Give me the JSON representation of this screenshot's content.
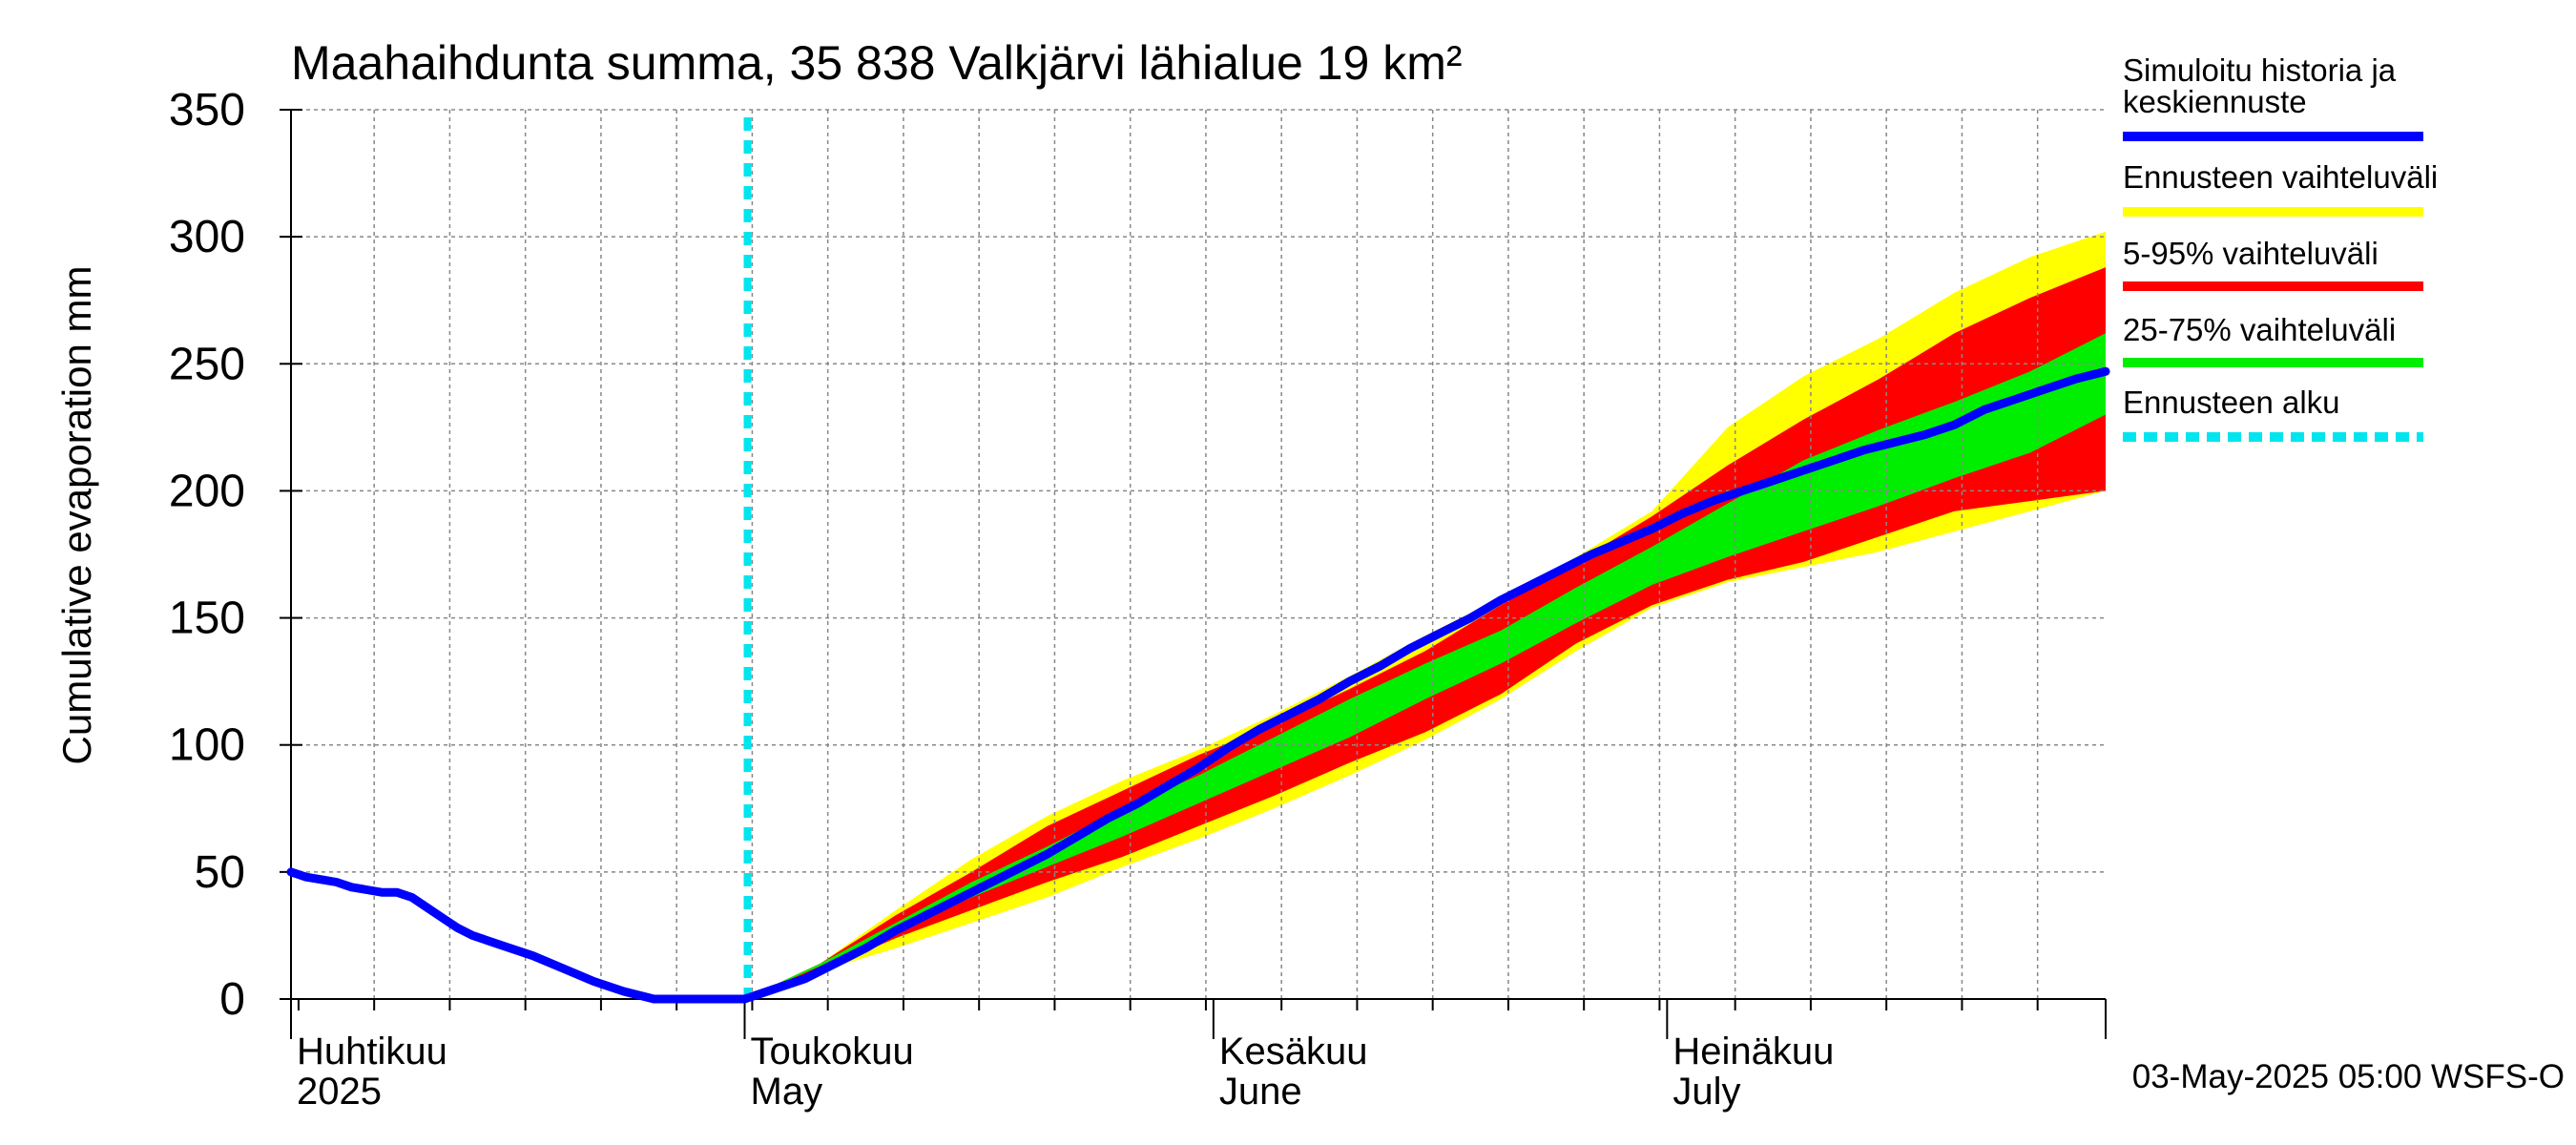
{
  "chart_data": {
    "type": "area",
    "title": "Maahaihdunta summa, 35 838 Valkjärvi lähialue 19 km²",
    "ylabel": "Cumulative evaporation   mm",
    "xlabel": "",
    "ylim": [
      0,
      350
    ],
    "y_ticks": [
      0,
      50,
      100,
      150,
      200,
      250,
      300,
      350
    ],
    "x_range_days": [
      0,
      120
    ],
    "grid": true,
    "legend_position": "right",
    "month_labels": [
      {
        "fi": "Huhtikuu",
        "en": "2025",
        "day": 0
      },
      {
        "fi": "Toukokuu",
        "en": "May",
        "day": 30
      },
      {
        "fi": "Kesäkuu",
        "en": "June",
        "day": 61
      },
      {
        "fi": "Heinäkuu",
        "en": "July",
        "day": 91
      }
    ],
    "forecast_start_day": 30,
    "history": {
      "x": [
        0,
        1,
        2,
        3,
        4,
        5,
        6,
        7,
        8,
        9,
        10,
        11,
        12,
        14,
        16,
        18,
        20,
        22,
        24,
        26,
        28,
        29,
        30
      ],
      "y": [
        50,
        48,
        47,
        46,
        44,
        43,
        42,
        42,
        40,
        36,
        32,
        28,
        25,
        21,
        17,
        12,
        7,
        3,
        0,
        0,
        0,
        0,
        0
      ]
    },
    "median": {
      "x": [
        30,
        32,
        34,
        36,
        38,
        40,
        42,
        44,
        46,
        48,
        50,
        52,
        54,
        56,
        58,
        60,
        62,
        64,
        66,
        68,
        70,
        72,
        74,
        76,
        78,
        80,
        82,
        84,
        86,
        88,
        90,
        92,
        94,
        96,
        98,
        100,
        102,
        104,
        106,
        108,
        110,
        112,
        114,
        116,
        118,
        120
      ],
      "y": [
        0,
        4,
        8,
        14,
        20,
        27,
        33,
        39,
        45,
        51,
        57,
        64,
        71,
        77,
        84,
        91,
        99,
        106,
        112,
        118,
        125,
        131,
        138,
        144,
        150,
        157,
        163,
        169,
        175,
        180,
        185,
        191,
        196,
        200,
        204,
        208,
        212,
        216,
        219,
        222,
        226,
        232,
        236,
        240,
        244,
        247
      ]
    },
    "series": [
      {
        "name": "Ennusteen vaihteluväli",
        "x": [
          30,
          35,
          40,
          45,
          50,
          55,
          60,
          65,
          70,
          75,
          80,
          85,
          90,
          95,
          100,
          105,
          110,
          115,
          120
        ],
        "lower": [
          0,
          11,
          20,
          30,
          40,
          52,
          63,
          75,
          88,
          102,
          118,
          137,
          154,
          164,
          170,
          176,
          184,
          192,
          200
        ],
        "upper": [
          0,
          14,
          35,
          55,
          72,
          86,
          98,
          112,
          127,
          143,
          158,
          174,
          192,
          225,
          245,
          260,
          278,
          292,
          302
        ]
      },
      {
        "name": "5-95% vaihteluväli",
        "x": [
          30,
          35,
          40,
          45,
          50,
          55,
          60,
          65,
          70,
          75,
          80,
          85,
          90,
          95,
          100,
          105,
          110,
          115,
          120
        ],
        "lower": [
          0,
          11,
          24,
          35,
          46,
          56,
          68,
          80,
          93,
          105,
          120,
          140,
          155,
          165,
          172,
          182,
          192,
          196,
          200
        ],
        "upper": [
          0,
          14,
          33,
          50,
          68,
          82,
          96,
          108,
          122,
          137,
          155,
          172,
          190,
          210,
          228,
          244,
          262,
          276,
          288
        ]
      },
      {
        "name": "25-75% vaihteluväli",
        "x": [
          30,
          35,
          40,
          45,
          50,
          55,
          60,
          65,
          70,
          75,
          80,
          85,
          90,
          95,
          100,
          105,
          110,
          115,
          120
        ],
        "lower": [
          0,
          13,
          27,
          40,
          52,
          64,
          77,
          90,
          103,
          118,
          132,
          148,
          163,
          174,
          184,
          194,
          205,
          215,
          230
        ],
        "upper": [
          0,
          14,
          30,
          46,
          60,
          75,
          88,
          103,
          118,
          132,
          145,
          162,
          178,
          195,
          212,
          224,
          235,
          247,
          262
        ]
      }
    ],
    "legend": [
      {
        "label": "Simuloitu historia ja keskiennuste",
        "color": "#0000ff",
        "style": "solid"
      },
      {
        "label": "Ennusteen vaihteluväli",
        "color": "#ffff00",
        "style": "solid"
      },
      {
        "label": "5-95% vaihteluväli",
        "color": "#ff0000",
        "style": "solid"
      },
      {
        "label": "25-75% vaihteluväli",
        "color": "#00ee00",
        "style": "solid"
      },
      {
        "label": "Ennusteen alku",
        "color": "#00e5ee",
        "style": "dashed"
      }
    ],
    "footer": "03-May-2025 05:00 WSFS-O"
  },
  "colors": {
    "yellow": "#ffff00",
    "red": "#ff0000",
    "green": "#00ee00",
    "blue": "#0000ff",
    "cyan": "#00e5ee",
    "grid": "#888888"
  }
}
